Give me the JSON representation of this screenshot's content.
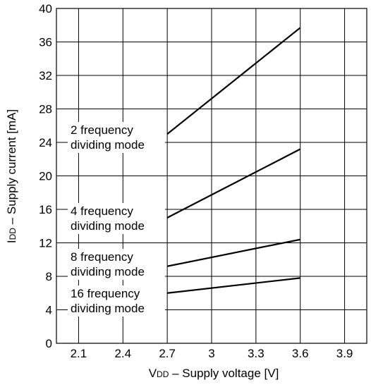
{
  "chart_data": {
    "type": "line",
    "title": "",
    "xlabel": "VDD – Supply voltage [V]",
    "xlabel_main": "V",
    "xlabel_sub": "DD",
    "xlabel_rest": " – Supply voltage [V]",
    "ylabel": "IDD – Supply current [mA]",
    "ylabel_main": "I",
    "ylabel_sub": "DD",
    "ylabel_rest": " – Supply current [mA]",
    "xlim": [
      1.95,
      4.05
    ],
    "ylim": [
      0,
      40
    ],
    "xticks": [
      "2.1",
      "2.4",
      "2.7",
      "3",
      "3.3",
      "3.6",
      "3.9"
    ],
    "yticks": [
      "0",
      "4",
      "8",
      "12",
      "16",
      "20",
      "24",
      "28",
      "32",
      "36",
      "40"
    ],
    "grid": true,
    "series": [
      {
        "name": "2 frequency dividing mode",
        "label_lines": [
          "2 frequency",
          "dividing mode"
        ],
        "x": [
          2.7,
          3.6
        ],
        "y": [
          25.0,
          37.7
        ]
      },
      {
        "name": "4 frequency dividing mode",
        "label_lines": [
          "4 frequency",
          "dividing mode"
        ],
        "x": [
          2.7,
          3.6
        ],
        "y": [
          15.0,
          23.2
        ]
      },
      {
        "name": "8 frequency dividing mode",
        "label_lines": [
          "8 frequency",
          "dividing mode"
        ],
        "x": [
          2.7,
          3.6
        ],
        "y": [
          9.2,
          12.4
        ]
      },
      {
        "name": "16 frequency dividing mode",
        "label_lines": [
          "16 frequency",
          "dividing mode"
        ],
        "x": [
          2.7,
          3.6
        ],
        "y": [
          6.0,
          7.8
        ]
      }
    ]
  }
}
